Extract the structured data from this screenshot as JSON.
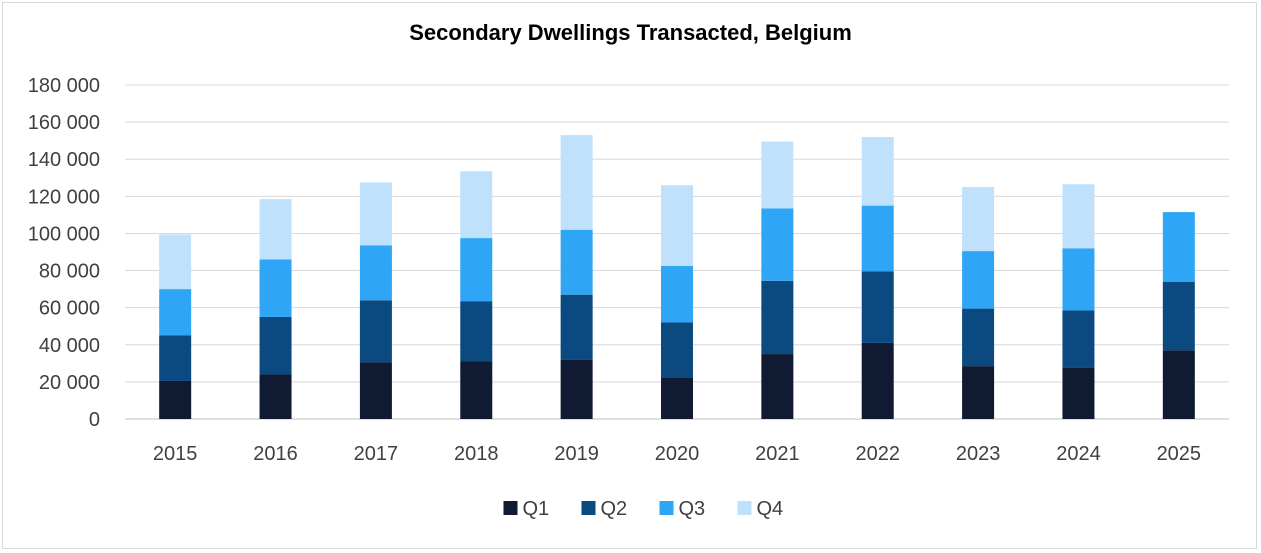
{
  "chart_data": {
    "type": "bar",
    "stacked": true,
    "title": "Secondary Dwellings Transacted, Belgium",
    "xlabel": "",
    "ylabel": "",
    "categories": [
      "2015",
      "2016",
      "2017",
      "2018",
      "2019",
      "2020",
      "2021",
      "2022",
      "2023",
      "2024",
      "2025"
    ],
    "ylim": [
      0,
      180000
    ],
    "yticks": [
      0,
      20000,
      40000,
      60000,
      80000,
      100000,
      120000,
      140000,
      160000,
      180000
    ],
    "ytick_labels": [
      "0",
      "20 000",
      "40 000",
      "60 000",
      "80 000",
      "100 000",
      "120 000",
      "140 000",
      "160 000",
      "180 000"
    ],
    "grid": true,
    "legend_position": "bottom",
    "series": [
      {
        "name": "Q1",
        "color": "#111a33",
        "values": [
          20500,
          24000,
          30500,
          31000,
          32000,
          22500,
          35000,
          41000,
          28500,
          27500,
          37000
        ]
      },
      {
        "name": "Q2",
        "color": "#0a4a80",
        "values": [
          24500,
          31000,
          33500,
          32500,
          35000,
          29500,
          39500,
          38500,
          31000,
          31000,
          37000
        ]
      },
      {
        "name": "Q3",
        "color": "#2ea6f5",
        "values": [
          25000,
          31000,
          29500,
          34000,
          35000,
          30500,
          39000,
          35500,
          31000,
          33500,
          37500
        ]
      },
      {
        "name": "Q4",
        "color": "#bfe1fb",
        "values": [
          29500,
          32500,
          34000,
          36000,
          51000,
          43500,
          36000,
          37000,
          34500,
          34500,
          0
        ]
      }
    ]
  }
}
